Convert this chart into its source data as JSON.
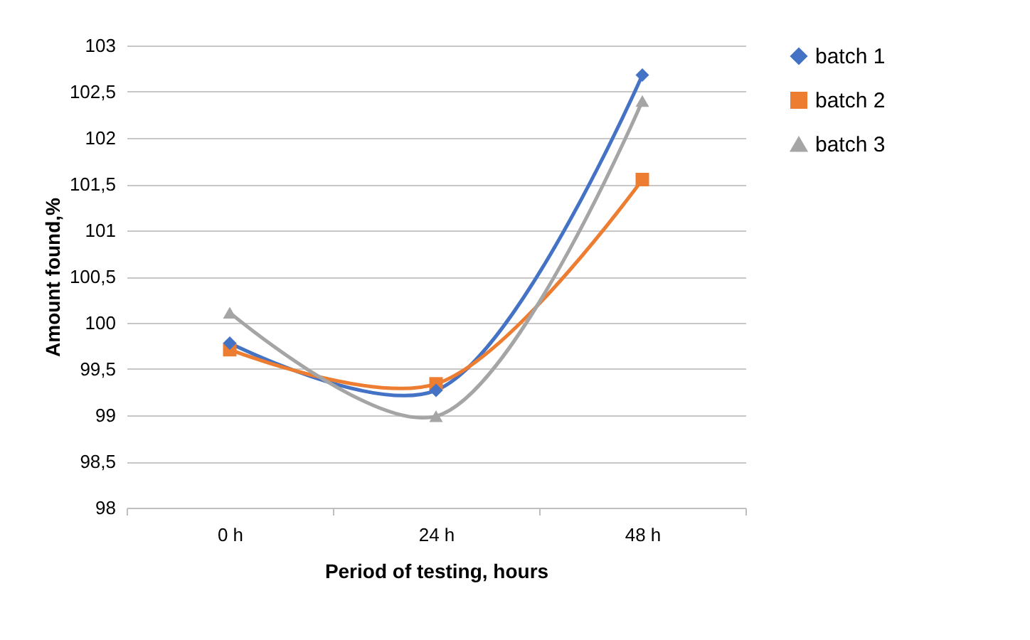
{
  "chart_data": {
    "type": "line",
    "xlabel": "Period of testing, hours",
    "ylabel": "Amount found,%",
    "categories": [
      "0 h",
      "24 h",
      "48 h"
    ],
    "series": [
      {
        "name": "batch 1",
        "color": "#4472c4",
        "marker": "diamond",
        "values": [
          99.78,
          99.27,
          102.68
        ]
      },
      {
        "name": "batch 2",
        "color": "#ed7d31",
        "marker": "square",
        "values": [
          99.71,
          99.34,
          101.55
        ]
      },
      {
        "name": "batch 3",
        "color": "#a5a5a5",
        "marker": "triangle",
        "values": [
          100.11,
          98.99,
          102.4
        ]
      }
    ],
    "ylim": [
      98,
      103
    ],
    "yticks": [
      {
        "value": 98,
        "label": "98"
      },
      {
        "value": 98.5,
        "label": "98,5"
      },
      {
        "value": 99,
        "label": "99"
      },
      {
        "value": 99.5,
        "label": "99,5"
      },
      {
        "value": 100,
        "label": "100"
      },
      {
        "value": 100.5,
        "label": "100,5"
      },
      {
        "value": 101,
        "label": "101"
      },
      {
        "value": 101.5,
        "label": "101,5"
      },
      {
        "value": 102,
        "label": "102"
      },
      {
        "value": 102.5,
        "label": "102,5"
      },
      {
        "value": 103,
        "label": "103"
      }
    ],
    "grid": "y",
    "legend": "right",
    "line_style": "solid"
  }
}
